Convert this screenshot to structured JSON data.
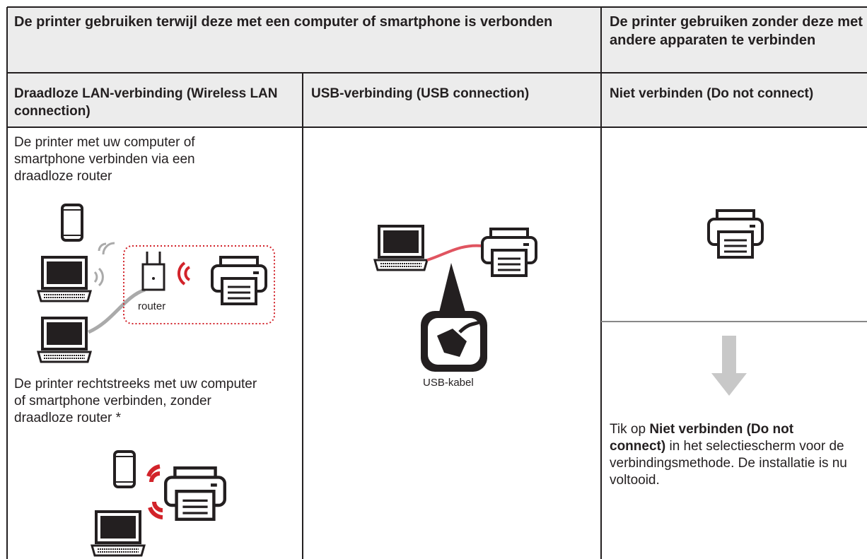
{
  "table": {
    "header": [
      "De printer gebruiken terwijl deze met een computer of smartphone is verbonden",
      "De printer gebruiken zonder deze met andere apparaten te verbinden"
    ],
    "subheader": [
      "Draadloze LAN-verbinding (Wireless LAN connection)",
      "USB-verbinding (USB connection)",
      "Niet verbinden (Do not connect)"
    ],
    "wireless": {
      "router_text": "De printer met uw computer of smartphone verbinden via een draadloze router",
      "router_label": "router",
      "direct_text": "De printer rechtstreeks met uw computer of smartphone verbinden, zonder draadloze router *"
    },
    "usb": {
      "cable_label": "USB-kabel"
    },
    "no_connect": {
      "instruction": [
        "Tik op ",
        "Niet verbinden (Do not connect)",
        " in het selectiescherm voor de verbindingsmethode. De installatie is nu voltooid."
      ]
    }
  }
}
